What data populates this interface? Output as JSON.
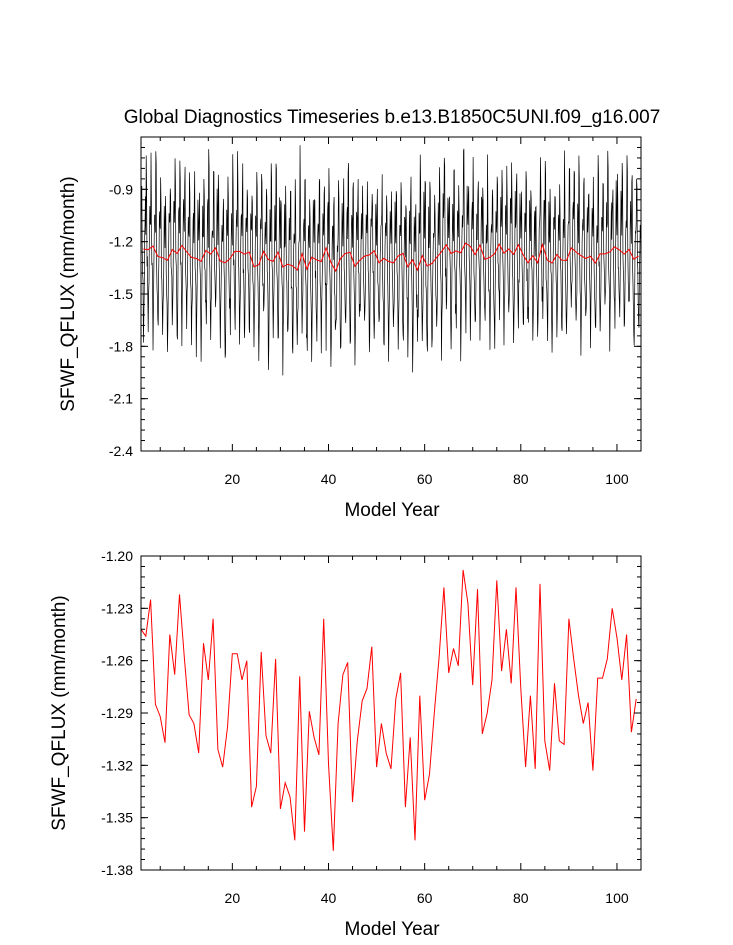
{
  "colors": {
    "monthly": "#000000",
    "annual": "#ff0000"
  },
  "chart_data": [
    {
      "type": "line",
      "title": "Global Diagnostics Timeseries b.e13.B1850C5UNI.f09_g16.007",
      "xlabel": "Model Year",
      "ylabel": "SFWF_QFLUX (mm/month)",
      "xlim": [
        1,
        105
      ],
      "ylim": [
        -2.4,
        -0.6
      ],
      "xticks": [
        20,
        40,
        60,
        80,
        100
      ],
      "xtick_labels": [
        "20",
        "40",
        "60",
        "80",
        "100"
      ],
      "yticks": [
        -2.4,
        -2.1,
        -1.8,
        -1.5,
        -1.2,
        -0.9
      ],
      "ytick_labels": [
        "-2.4",
        "-2.1",
        "-1.8",
        "-1.5",
        "-1.2",
        "-0.9"
      ],
      "series": [
        {
          "name": "monthly",
          "color": "#000000",
          "note": "monthly values oscillating between about -2.1 and -0.65"
        },
        {
          "name": "annual",
          "color": "#ff0000",
          "values_ref": "annual"
        }
      ]
    },
    {
      "type": "line",
      "title": "",
      "xlabel": "Model Year",
      "ylabel": "SFWF_QFLUX (mm/month)",
      "xlim": [
        1,
        105
      ],
      "ylim": [
        -1.38,
        -1.2
      ],
      "xticks": [
        20,
        40,
        60,
        80,
        100
      ],
      "xtick_labels": [
        "20",
        "40",
        "60",
        "80",
        "100"
      ],
      "yticks": [
        -1.38,
        -1.35,
        -1.32,
        -1.29,
        -1.26,
        -1.23,
        -1.2
      ],
      "ytick_labels": [
        "-1.38",
        "-1.35",
        "-1.32",
        "-1.29",
        "-1.26",
        "-1.23",
        "-1.20"
      ],
      "series": [
        {
          "name": "annual",
          "color": "#ff0000",
          "values_ref": "annual"
        }
      ]
    }
  ],
  "annual": {
    "x_start": 1,
    "values": [
      -1.242,
      -1.246,
      -1.225,
      -1.285,
      -1.292,
      -1.307,
      -1.245,
      -1.268,
      -1.222,
      -1.258,
      -1.291,
      -1.296,
      -1.313,
      -1.25,
      -1.271,
      -1.236,
      -1.311,
      -1.321,
      -1.298,
      -1.256,
      -1.256,
      -1.271,
      -1.26,
      -1.344,
      -1.332,
      -1.255,
      -1.303,
      -1.313,
      -1.259,
      -1.345,
      -1.33,
      -1.338,
      -1.363,
      -1.269,
      -1.358,
      -1.289,
      -1.304,
      -1.314,
      -1.236,
      -1.319,
      -1.369,
      -1.296,
      -1.268,
      -1.261,
      -1.341,
      -1.306,
      -1.283,
      -1.276,
      -1.252,
      -1.321,
      -1.296,
      -1.313,
      -1.322,
      -1.282,
      -1.267,
      -1.344,
      -1.304,
      -1.363,
      -1.28,
      -1.34,
      -1.325,
      -1.29,
      -1.258,
      -1.218,
      -1.267,
      -1.253,
      -1.263,
      -1.208,
      -1.227,
      -1.274,
      -1.219,
      -1.302,
      -1.29,
      -1.271,
      -1.214,
      -1.266,
      -1.242,
      -1.273,
      -1.218,
      -1.276,
      -1.321,
      -1.28,
      -1.322,
      -1.216,
      -1.306,
      -1.323,
      -1.273,
      -1.306,
      -1.308,
      -1.236,
      -1.259,
      -1.28,
      -1.296,
      -1.284,
      -1.323,
      -1.27,
      -1.27,
      -1.259,
      -1.23,
      -1.247,
      -1.271,
      -1.245,
      -1.301,
      -1.282
    ]
  }
}
